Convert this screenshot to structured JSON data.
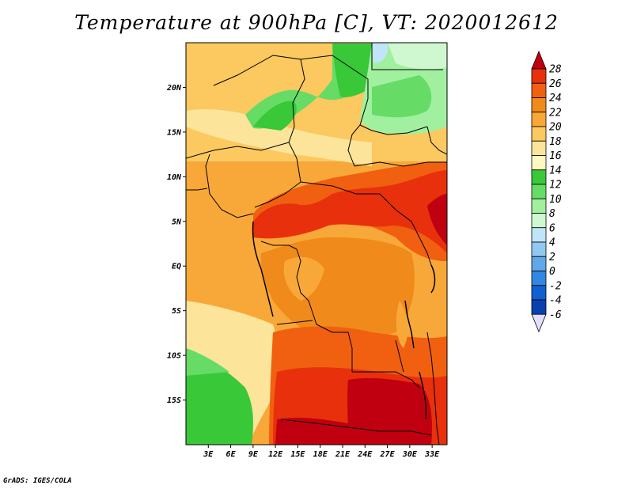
{
  "title": "Temperature at 900hPa [C], VT: 2020012612",
  "footer": "GrADS: IGES/COLA",
  "map": {
    "type": "filled-contour map",
    "variable": "Temperature",
    "level_hpa": 900,
    "units": "C",
    "valid_time": "2020012612",
    "lon_labels": [
      "3E",
      "6E",
      "9E",
      "12E",
      "15E",
      "18E",
      "21E",
      "24E",
      "27E",
      "30E",
      "33E"
    ],
    "lon_values": [
      3,
      6,
      9,
      12,
      15,
      18,
      21,
      24,
      27,
      30,
      33
    ],
    "lat_labels": [
      "20N",
      "15N",
      "10N",
      "5N",
      "EQ",
      "5S",
      "10S",
      "15S"
    ],
    "lat_values": [
      20,
      15,
      10,
      5,
      0,
      -5,
      -10,
      -15
    ],
    "lon_range": [
      0,
      35
    ],
    "lat_range": [
      -20,
      25
    ]
  },
  "colorbar": {
    "labels": [
      "28",
      "26",
      "24",
      "22",
      "20",
      "18",
      "16",
      "14",
      "12",
      "10",
      "8",
      "6",
      "4",
      "2",
      "0",
      "-2",
      "-4",
      "-6"
    ],
    "colors": [
      "#c00010",
      "#e8300c",
      "#f06010",
      "#f08a1a",
      "#f8a838",
      "#fcc860",
      "#fce49a",
      "#fff8c0",
      "#38c838",
      "#66dc66",
      "#a0f0a0",
      "#d0f8d0",
      "#c0e4f8",
      "#90c8f0",
      "#60a8e8",
      "#3088e0",
      "#1060d0",
      "#0840b0",
      "#0a1e80"
    ],
    "top_color": "#c00010",
    "bottom_color": "#e0e0ff"
  }
}
